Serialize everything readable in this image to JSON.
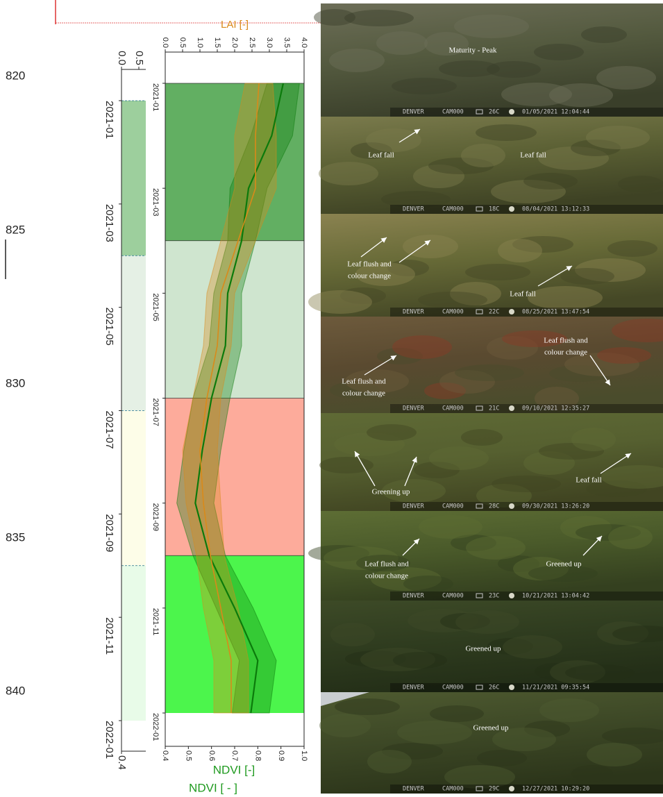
{
  "line_numbers": [
    "820",
    "825",
    "830",
    "835",
    "840"
  ],
  "chart_data": [
    {
      "type": "phases",
      "xlim": [
        "2021-01",
        "2022-01"
      ],
      "xticks": [
        "2021-01",
        "2021-03",
        "2021-05",
        "2021-07",
        "2021-09",
        "2021-11",
        "2022-01"
      ],
      "ylim": [
        0,
        4
      ],
      "yticks": [
        {
          "value": 0,
          "label": "0.0"
        },
        0.5
      ],
      "y2lim": [
        0.4,
        1.0
      ],
      "y2ticks": [
        0.4
      ],
      "y2label": "NDVI [ - ]",
      "phases": [
        {
          "start": "2021-01",
          "end": "2021-04",
          "color": "#9dcf9d"
        },
        {
          "start": "2021-04",
          "end": "2021-07",
          "color": "#e5f0e5"
        },
        {
          "start": "2021-07",
          "end": "2021-10",
          "color": "#fdfde8"
        },
        {
          "start": "2021-10",
          "end": "2022-01",
          "color": "#e8fbe8"
        }
      ]
    },
    {
      "type": "line",
      "xlim": [
        "2021-01",
        "2022-01"
      ],
      "xticks": [
        "2021-01",
        "2021-03",
        "2021-05",
        "2021-07",
        "2021-09",
        "2021-11",
        "2022-01"
      ],
      "ylim": [
        0,
        4
      ],
      "yticks": [
        {
          "value": 0,
          "label": "0.0"
        },
        0.5,
        {
          "value": 1,
          "label": "1.0"
        },
        1.5,
        {
          "value": 2,
          "label": "2.0"
        },
        2.5,
        {
          "value": 3,
          "label": "3.0"
        },
        3.5,
        {
          "value": 4,
          "label": "4.0"
        }
      ],
      "ylabel": "LAI [-]",
      "y2lim": [
        0.4,
        1.0
      ],
      "y2ticks": [
        0.4,
        0.5,
        0.6,
        0.7,
        0.8,
        0.9,
        {
          "value": 1,
          "label": "1.0"
        }
      ],
      "y2label": "NDVI [-]",
      "phases": [
        {
          "start": "2021-01",
          "end": "2021-04",
          "color": "#5aab5a"
        },
        {
          "start": "2021-04",
          "end": "2021-07",
          "color": "#cfe5cf"
        },
        {
          "start": "2021-07",
          "end": "2021-10",
          "color": "#fdab9b"
        },
        {
          "start": "2021-10",
          "end": "2022-01",
          "color": "#4cf54c"
        }
      ],
      "x": [
        "2021-01",
        "2021-02",
        "2021-03",
        "2021-04",
        "2021-05",
        "2021-06",
        "2021-07",
        "2021-08",
        "2021-09",
        "2021-10",
        "2021-11",
        "2021-12",
        "2022-01"
      ],
      "series": [
        {
          "axis": "y2",
          "color": "#0b7a0b",
          "values": [
            0.91,
            0.86,
            0.76,
            0.73,
            0.67,
            0.66,
            0.6,
            0.56,
            0.53,
            0.59,
            0.7,
            0.8,
            0.77
          ],
          "errors": [
            0.07,
            0.09,
            0.08,
            0.06,
            0.06,
            0.07,
            0.08,
            0.08,
            0.08,
            0.07,
            0.08,
            0.08,
            0.08
          ]
        },
        {
          "axis": "y",
          "color": "#d98a1a",
          "values": [
            2.7,
            2.6,
            2.6,
            2.1,
            1.6,
            1.5,
            1.2,
            1.0,
            1.1,
            1.3,
            1.6,
            1.9,
            1.9
          ],
          "errors": [
            0.4,
            0.6,
            0.6,
            0.5,
            0.4,
            0.4,
            0.4,
            0.5,
            0.5,
            0.4,
            0.5,
            0.5,
            0.5
          ]
        }
      ]
    }
  ],
  "photos": [
    {
      "labels": [
        {
          "lines": [
            "Maturity - Peak"
          ]
        }
      ],
      "stamp": {
        "site": "DENVER",
        "camera": "CAM000",
        "temperature": "26C",
        "datetime": "01/05/2021 12:04:44"
      }
    },
    {
      "labels": [
        {
          "lines": [
            "Leaf fall"
          ]
        },
        {
          "lines": [
            "Leaf fall"
          ]
        }
      ],
      "stamp": {
        "site": "DENVER",
        "camera": "CAM000",
        "temperature": "18C",
        "datetime": "08/04/2021 13:12:33"
      }
    },
    {
      "labels": [
        {
          "lines": [
            "Leaf flush and",
            "colour change"
          ]
        },
        {
          "lines": [
            "Leaf fall"
          ]
        }
      ],
      "stamp": {
        "site": "DENVER",
        "camera": "CAM000",
        "temperature": "22C",
        "datetime": "08/25/2021 13:47:54"
      }
    },
    {
      "labels": [
        {
          "lines": [
            "Leaf flush and",
            "colour change"
          ]
        },
        {
          "lines": [
            "Leaf flush and",
            "colour change"
          ]
        }
      ],
      "stamp": {
        "site": "DENVER",
        "camera": "CAM000",
        "temperature": "21C",
        "datetime": "09/10/2021 12:35:27"
      }
    },
    {
      "labels": [
        {
          "lines": [
            "Greening up"
          ]
        },
        {
          "lines": [
            "Leaf fall"
          ]
        }
      ],
      "stamp": {
        "site": "DENVER",
        "camera": "CAM000",
        "temperature": "28C",
        "datetime": "09/30/2021 13:26:20"
      }
    },
    {
      "labels": [
        {
          "lines": [
            "Leaf flush and",
            "colour change"
          ]
        },
        {
          "lines": [
            "Greened up"
          ]
        }
      ],
      "stamp": {
        "site": "DENVER",
        "camera": "CAM000",
        "temperature": "23C",
        "datetime": "10/21/2021 13:04:42"
      }
    },
    {
      "labels": [
        {
          "lines": [
            "Greened up"
          ]
        }
      ],
      "stamp": {
        "site": "DENVER",
        "camera": "CAM000",
        "temperature": "26C",
        "datetime": "11/21/2021 09:35:54"
      }
    },
    {
      "labels": [
        {
          "lines": [
            "Greened up"
          ]
        }
      ],
      "stamp": {
        "site": "DENVER",
        "camera": "CAM000",
        "temperature": "29C",
        "datetime": "12/27/2021 10:29:20"
      }
    }
  ]
}
